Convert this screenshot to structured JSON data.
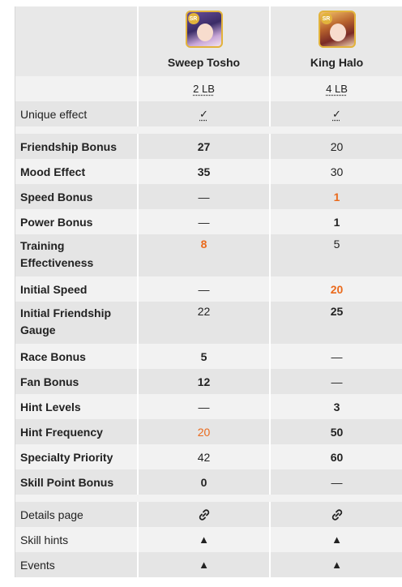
{
  "cards": [
    {
      "name": "Sweep Tosho",
      "limit_break": "2 LB",
      "rarity": "SR"
    },
    {
      "name": "King Halo",
      "limit_break": "4 LB",
      "rarity": "SR"
    }
  ],
  "unique_effect": {
    "label": "Unique effect",
    "values": [
      "✓",
      "✓"
    ]
  },
  "stats": [
    {
      "label": "Friendship Bonus",
      "values": [
        "27",
        "20"
      ]
    },
    {
      "label": "Mood Effect",
      "values": [
        "35",
        "30"
      ]
    },
    {
      "label": "Speed Bonus",
      "values": [
        "—",
        "1"
      ]
    },
    {
      "label": "Power Bonus",
      "values": [
        "—",
        "1"
      ]
    },
    {
      "label": "Training Effectiveness",
      "values": [
        "8",
        "5"
      ]
    },
    {
      "label": "Initial Speed",
      "values": [
        "—",
        "20"
      ]
    },
    {
      "label": "Initial Friendship Gauge",
      "values": [
        "22",
        "25"
      ]
    },
    {
      "label": "Race Bonus",
      "values": [
        "5",
        "—"
      ]
    },
    {
      "label": "Fan Bonus",
      "values": [
        "12",
        "—"
      ]
    },
    {
      "label": "Hint Levels",
      "values": [
        "—",
        "3"
      ]
    },
    {
      "label": "Hint Frequency",
      "values": [
        "20",
        "50"
      ]
    },
    {
      "label": "Specialty Priority",
      "values": [
        "42",
        "60"
      ]
    },
    {
      "label": "Skill Point Bonus",
      "values": [
        "0",
        "—"
      ]
    }
  ],
  "footer": [
    {
      "label": "Details page",
      "icon": "link-icon"
    },
    {
      "label": "Skill hints",
      "values": [
        "▲",
        "▲"
      ]
    },
    {
      "label": "Events",
      "values": [
        "▲",
        "▲"
      ]
    }
  ],
  "colors": {
    "highlight": "#ea6a1c",
    "row_shade": "#e5e5e5",
    "row_light": "#f2f2f2"
  }
}
